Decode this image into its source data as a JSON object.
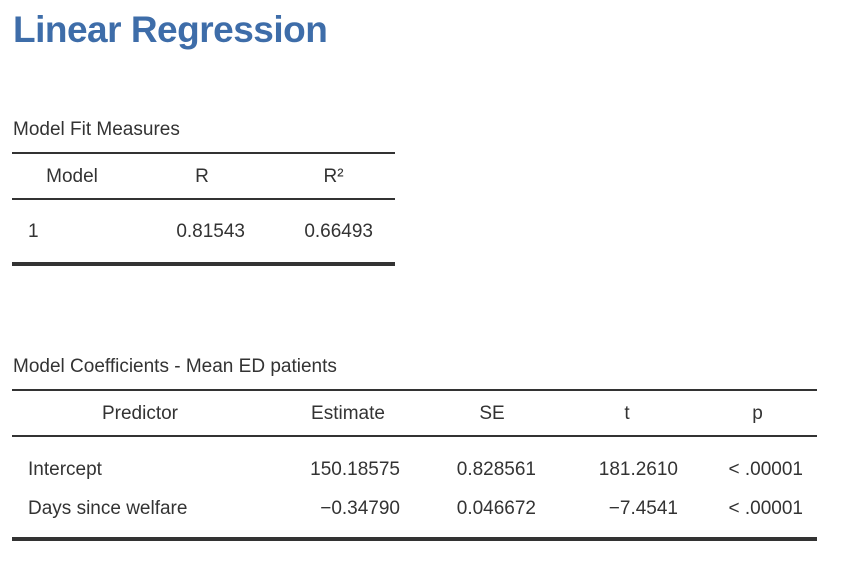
{
  "title": "Linear Regression",
  "colors": {
    "heading_accent": "#3E6DA9",
    "text": "#333333",
    "rule": "#333333"
  },
  "model_fit": {
    "title": "Model Fit Measures",
    "headers": [
      "Model",
      "R",
      "R²"
    ],
    "rows": [
      [
        "1",
        "0.81543",
        "0.66493"
      ]
    ]
  },
  "coefficients": {
    "title": "Model Coefficients - Mean ED patients",
    "headers": [
      "Predictor",
      "Estimate",
      "SE",
      "t",
      "p"
    ],
    "rows": [
      [
        "Intercept",
        "150.18575",
        "0.828561",
        "181.2610",
        "< .00001"
      ],
      [
        "Days since welfare",
        "−0.34790",
        "0.046672",
        "−7.4541",
        "< .00001"
      ]
    ]
  }
}
